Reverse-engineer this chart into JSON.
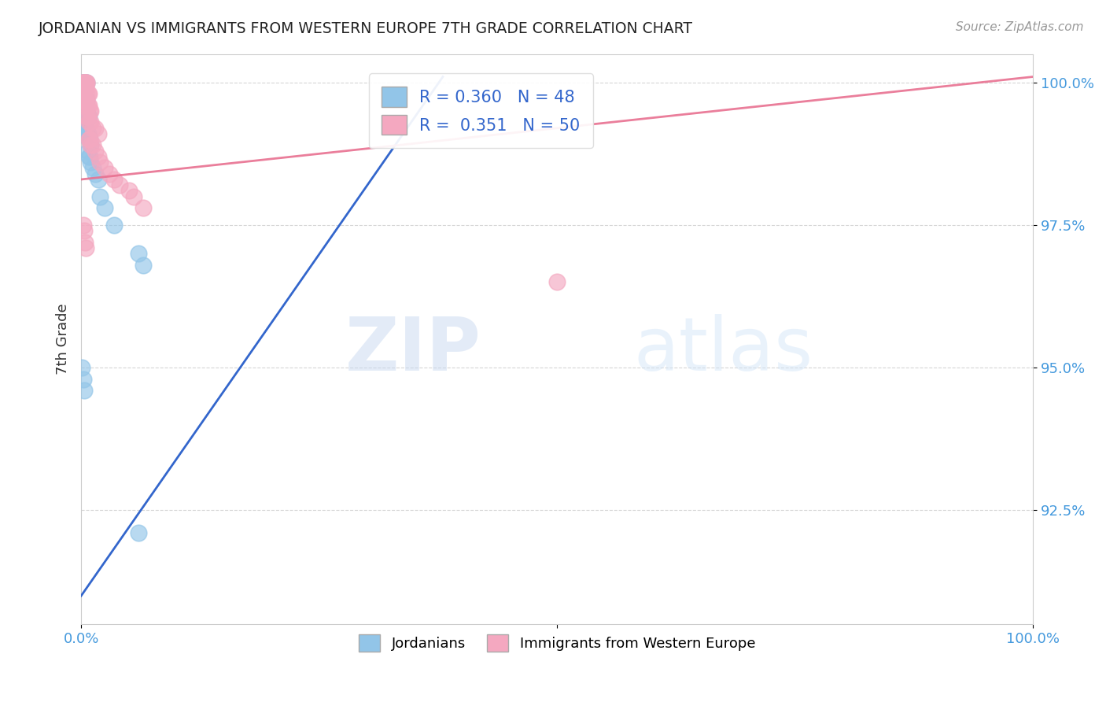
{
  "title": "JORDANIAN VS IMMIGRANTS FROM WESTERN EUROPE 7TH GRADE CORRELATION CHART",
  "source_text": "Source: ZipAtlas.com",
  "xlabel": "",
  "ylabel": "7th Grade",
  "xlim": [
    0.0,
    1.0
  ],
  "ylim": [
    0.905,
    1.005
  ],
  "yticks": [
    0.925,
    0.95,
    0.975,
    1.0
  ],
  "ytick_labels": [
    "92.5%",
    "95.0%",
    "97.5%",
    "100.0%"
  ],
  "xtick_labels_left": "0.0%",
  "xtick_labels_right": "100.0%",
  "blue_R": 0.36,
  "blue_N": 48,
  "pink_R": 0.351,
  "pink_N": 50,
  "blue_color": "#92C5E8",
  "pink_color": "#F4A8C0",
  "blue_line_color": "#3366CC",
  "pink_line_color": "#E87090",
  "legend_label_blue": "Jordanians",
  "legend_label_pink": "Immigrants from Western Europe",
  "watermark_zip": "ZIP",
  "watermark_atlas": "atlas",
  "background_color": "#FFFFFF",
  "grid_color": "#CCCCCC",
  "blue_line_x0": 0.0,
  "blue_line_y0": 0.91,
  "blue_line_x1": 0.38,
  "blue_line_y1": 1.001,
  "pink_line_x0": 0.0,
  "pink_line_y0": 0.983,
  "pink_line_x1": 1.0,
  "pink_line_y1": 1.001,
  "blue_scatter_x": [
    0.001,
    0.002,
    0.003,
    0.003,
    0.004,
    0.005,
    0.005,
    0.006,
    0.001,
    0.002,
    0.002,
    0.003,
    0.004,
    0.004,
    0.005,
    0.005,
    0.006,
    0.002,
    0.003,
    0.004,
    0.005,
    0.006,
    0.007,
    0.008,
    0.003,
    0.004,
    0.005,
    0.006,
    0.007,
    0.008,
    0.009,
    0.01,
    0.007,
    0.008,
    0.009,
    0.01,
    0.012,
    0.015,
    0.018,
    0.02,
    0.025,
    0.035,
    0.06,
    0.065,
    0.001,
    0.002,
    0.003,
    0.06
  ],
  "blue_scatter_y": [
    1.0,
    1.0,
    1.0,
    1.0,
    1.0,
    1.0,
    1.0,
    1.0,
    0.999,
    0.9985,
    0.998,
    0.998,
    0.997,
    0.997,
    0.997,
    0.997,
    0.997,
    0.996,
    0.996,
    0.995,
    0.995,
    0.995,
    0.994,
    0.994,
    0.993,
    0.992,
    0.992,
    0.991,
    0.991,
    0.99,
    0.99,
    0.989,
    0.988,
    0.987,
    0.987,
    0.986,
    0.985,
    0.984,
    0.983,
    0.98,
    0.978,
    0.975,
    0.97,
    0.968,
    0.95,
    0.948,
    0.946,
    0.921
  ],
  "pink_scatter_x": [
    0.001,
    0.002,
    0.003,
    0.003,
    0.004,
    0.005,
    0.006,
    0.006,
    0.002,
    0.003,
    0.004,
    0.004,
    0.005,
    0.006,
    0.007,
    0.008,
    0.003,
    0.004,
    0.005,
    0.006,
    0.007,
    0.008,
    0.009,
    0.01,
    0.006,
    0.007,
    0.008,
    0.01,
    0.012,
    0.015,
    0.018,
    0.008,
    0.009,
    0.01,
    0.012,
    0.015,
    0.018,
    0.02,
    0.025,
    0.03,
    0.035,
    0.04,
    0.05,
    0.055,
    0.065,
    0.002,
    0.003,
    0.004,
    0.005,
    0.5
  ],
  "pink_scatter_y": [
    1.0,
    1.0,
    1.0,
    1.0,
    1.0,
    1.0,
    1.0,
    1.0,
    0.999,
    0.999,
    0.999,
    0.999,
    0.999,
    0.998,
    0.998,
    0.998,
    0.997,
    0.997,
    0.997,
    0.996,
    0.996,
    0.996,
    0.995,
    0.995,
    0.994,
    0.994,
    0.993,
    0.993,
    0.992,
    0.992,
    0.991,
    0.99,
    0.99,
    0.989,
    0.989,
    0.988,
    0.987,
    0.986,
    0.985,
    0.984,
    0.983,
    0.982,
    0.981,
    0.98,
    0.978,
    0.975,
    0.974,
    0.972,
    0.971,
    0.965
  ]
}
